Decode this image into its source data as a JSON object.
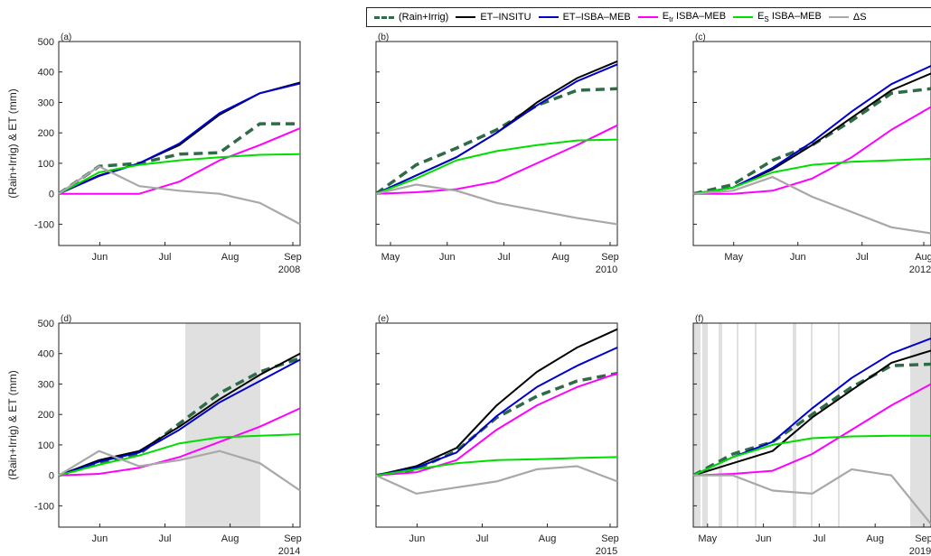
{
  "legend": [
    {
      "label": "(Rain+Irrig)",
      "color": "#2e6b46",
      "dashed": true
    },
    {
      "label": "ET–INSITU",
      "color": "#000000",
      "dashed": false
    },
    {
      "label": "ET–ISBA–MEB",
      "color": "#0000cc",
      "dashed": false
    },
    {
      "label": "E",
      "sub": "tr",
      "suffix": " ISBA–MEB",
      "color": "#ff00ff",
      "dashed": false
    },
    {
      "label": "E",
      "sub": "S",
      "suffix": " ISBA–MEB",
      "color": "#00dd00",
      "dashed": false
    },
    {
      "label": "ΔS",
      "color": "#a8a8a8",
      "dashed": false
    }
  ],
  "ylabel": "(Rain+Irrig) & ET (mm)",
  "chart_data": [
    {
      "type": "line",
      "panel": "(a)",
      "year": "2008",
      "ylim": [
        -170,
        500
      ],
      "yticks": [
        "500",
        "400",
        "300",
        "200",
        "100",
        "0",
        "-100"
      ],
      "xticks": [
        "Jun",
        "Jul",
        "Aug",
        "Sep"
      ],
      "x": [
        0,
        1,
        2,
        3,
        4,
        5,
        6
      ],
      "series": [
        {
          "name": "(Rain+Irrig)",
          "values": [
            0,
            90,
            100,
            130,
            135,
            230,
            230
          ]
        },
        {
          "name": "ET–INSITU",
          "values": [
            0,
            60,
            100,
            160,
            260,
            330,
            365
          ]
        },
        {
          "name": "ET–ISBA–MEB",
          "values": [
            0,
            58,
            100,
            165,
            265,
            330,
            362
          ]
        },
        {
          "name": "E tr ISBA–MEB",
          "values": [
            0,
            0,
            0,
            40,
            110,
            160,
            215
          ]
        },
        {
          "name": "E S ISBA–MEB",
          "values": [
            0,
            70,
            95,
            110,
            120,
            128,
            130
          ]
        },
        {
          "name": "ΔS",
          "values": [
            0,
            90,
            25,
            10,
            0,
            -30,
            -100
          ]
        }
      ]
    },
    {
      "type": "line",
      "panel": "(b)",
      "year": "2010",
      "ylim": [
        -170,
        500
      ],
      "yticks": [],
      "xticks": [
        "May",
        "Jun",
        "Jul",
        "Aug",
        "Sep"
      ],
      "x": [
        0,
        1,
        2,
        3,
        4,
        5,
        6
      ],
      "series": [
        {
          "name": "(Rain+Irrig)",
          "values": [
            0,
            95,
            150,
            210,
            290,
            340,
            345
          ]
        },
        {
          "name": "ET–INSITU",
          "values": [
            0,
            60,
            120,
            200,
            300,
            380,
            435
          ]
        },
        {
          "name": "ET–ISBA–MEB",
          "values": [
            0,
            60,
            120,
            200,
            290,
            370,
            425
          ]
        },
        {
          "name": "E tr ISBA–MEB",
          "values": [
            0,
            5,
            15,
            40,
            100,
            160,
            225
          ]
        },
        {
          "name": "E S ISBA–MEB",
          "values": [
            0,
            50,
            110,
            140,
            160,
            175,
            178
          ]
        },
        {
          "name": "ΔS",
          "values": [
            0,
            30,
            10,
            -30,
            -55,
            -80,
            -100
          ]
        }
      ]
    },
    {
      "type": "line",
      "panel": "(c)",
      "year": "2012",
      "ylim": [
        -170,
        500
      ],
      "yticks": [],
      "xticks": [
        "May",
        "Jun",
        "Jul",
        "Aug"
      ],
      "x": [
        0,
        1,
        2,
        3,
        4,
        5,
        6
      ],
      "series": [
        {
          "name": "(Rain+Irrig)",
          "values": [
            0,
            30,
            110,
            160,
            240,
            330,
            345
          ]
        },
        {
          "name": "ET–INSITU",
          "values": [
            0,
            20,
            80,
            160,
            250,
            340,
            395
          ]
        },
        {
          "name": "ET–ISBA–MEB",
          "values": [
            0,
            20,
            85,
            170,
            270,
            360,
            420
          ]
        },
        {
          "name": "E tr ISBA–MEB",
          "values": [
            0,
            0,
            10,
            50,
            120,
            210,
            285
          ]
        },
        {
          "name": "E S ISBA–MEB",
          "values": [
            0,
            20,
            70,
            95,
            105,
            110,
            115
          ]
        },
        {
          "name": "ΔS",
          "values": [
            0,
            10,
            55,
            -10,
            -60,
            -110,
            -130
          ]
        }
      ]
    },
    {
      "type": "line",
      "panel": "(d)",
      "year": "2014",
      "ylim": [
        -170,
        500
      ],
      "yticks": [
        "500",
        "400",
        "300",
        "200",
        "100",
        "0",
        "-100"
      ],
      "xticks": [
        "Jun",
        "Jul",
        "Aug",
        "Sep"
      ],
      "x": [
        0,
        1,
        2,
        3,
        4,
        5,
        6
      ],
      "series": [
        {
          "name": "(Rain+Irrig)",
          "values": [
            0,
            40,
            70,
            170,
            270,
            340,
            385
          ]
        },
        {
          "name": "ET–INSITU",
          "values": [
            0,
            50,
            80,
            160,
            250,
            330,
            400
          ]
        },
        {
          "name": "ET–ISBA–MEB",
          "values": [
            0,
            45,
            75,
            150,
            240,
            310,
            380
          ]
        },
        {
          "name": "E tr ISBA–MEB",
          "values": [
            0,
            5,
            25,
            60,
            110,
            160,
            220
          ]
        },
        {
          "name": "E S ISBA–MEB",
          "values": [
            0,
            35,
            65,
            105,
            125,
            130,
            135
          ]
        },
        {
          "name": "ΔS",
          "values": [
            0,
            80,
            30,
            50,
            80,
            40,
            -50
          ]
        }
      ]
    },
    {
      "type": "line",
      "panel": "(e)",
      "year": "2015",
      "ylim": [
        -170,
        500
      ],
      "yticks": [],
      "xticks": [
        "Jun",
        "Jul",
        "Aug",
        "Sep"
      ],
      "x": [
        0,
        1,
        2,
        3,
        4,
        5,
        6
      ],
      "series": [
        {
          "name": "(Rain+Irrig)",
          "values": [
            0,
            20,
            80,
            190,
            260,
            310,
            335
          ]
        },
        {
          "name": "ET–INSITU",
          "values": [
            0,
            30,
            90,
            230,
            340,
            420,
            480
          ]
        },
        {
          "name": "ET–ISBA–MEB",
          "values": [
            0,
            25,
            75,
            195,
            290,
            360,
            420
          ]
        },
        {
          "name": "E tr ISBA–MEB",
          "values": [
            0,
            10,
            50,
            150,
            230,
            290,
            335
          ]
        },
        {
          "name": "E S ISBA–MEB",
          "values": [
            0,
            20,
            40,
            50,
            53,
            57,
            60
          ]
        },
        {
          "name": "ΔS",
          "values": [
            0,
            -60,
            -40,
            -20,
            20,
            30,
            -20
          ]
        }
      ]
    },
    {
      "type": "line",
      "panel": "(f)",
      "year": "2019",
      "ylim": [
        -170,
        500
      ],
      "yticks": [],
      "xticks": [
        "May",
        "Jun",
        "Jul",
        "Aug",
        "Sep"
      ],
      "x": [
        0,
        1,
        2,
        3,
        4,
        5,
        6
      ],
      "series": [
        {
          "name": "(Rain+Irrig)",
          "values": [
            0,
            70,
            110,
            200,
            290,
            360,
            365
          ]
        },
        {
          "name": "ET–INSITU",
          "values": [
            0,
            40,
            80,
            190,
            280,
            370,
            410
          ]
        },
        {
          "name": "ET–ISBA–MEB",
          "values": [
            0,
            60,
            110,
            220,
            320,
            400,
            450
          ]
        },
        {
          "name": "E tr ISBA–MEB",
          "values": [
            0,
            5,
            15,
            70,
            150,
            230,
            300
          ]
        },
        {
          "name": "E S ISBA–MEB",
          "values": [
            0,
            60,
            100,
            122,
            128,
            130,
            130
          ]
        },
        {
          "name": "ΔS",
          "values": [
            0,
            0,
            -50,
            -60,
            20,
            0,
            -160
          ]
        }
      ]
    }
  ]
}
